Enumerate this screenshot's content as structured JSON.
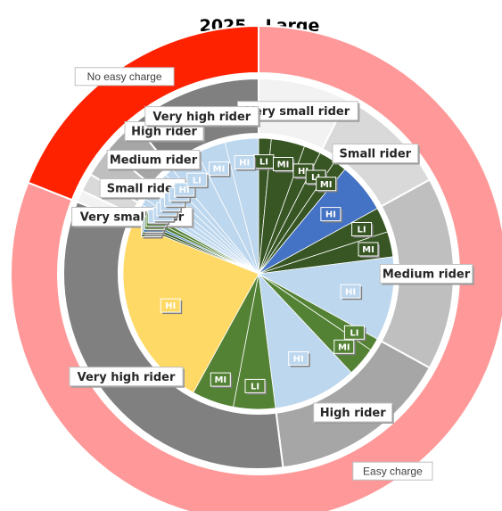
{
  "chart_data": {
    "type": "pie",
    "subtype": "multi-level donut (sunburst)",
    "title": "2025 - Large",
    "rings": [
      {
        "level": "charging",
        "segments": [
          {
            "label": "Easy charge",
            "value": 81,
            "color": "#FF9999"
          },
          {
            "label": "No easy charge",
            "value": 19,
            "color": "#FF2200"
          }
        ]
      },
      {
        "level": "rider",
        "segments": [
          {
            "label": "Very small rider",
            "value": 7.5,
            "group": "Easy charge",
            "color": "#F2F2F2"
          },
          {
            "label": "Small rider",
            "value": 9.5,
            "group": "Easy charge",
            "color": "#D9D9D9"
          },
          {
            "label": "Medium rider",
            "value": 16,
            "group": "Easy charge",
            "color": "#BFBFBF"
          },
          {
            "label": "High rider",
            "value": 15,
            "group": "Easy charge",
            "color": "#A6A6A6"
          },
          {
            "label": "Very high rider",
            "value": 33,
            "group": "Easy charge",
            "color": "#808080"
          },
          {
            "label": "Very small rider",
            "value": 1,
            "group": "No easy charge",
            "color": "#F2F2F2"
          },
          {
            "label": "Small rider",
            "value": 1.5,
            "group": "No easy charge",
            "color": "#D9D9D9"
          },
          {
            "label": "Medium rider",
            "value": 2.5,
            "group": "No easy charge",
            "color": "#BFBFBF"
          },
          {
            "label": "High rider",
            "value": 3,
            "group": "No easy charge",
            "color": "#A6A6A6"
          },
          {
            "label": "Very high rider",
            "value": 11,
            "group": "No easy charge",
            "color": "#808080"
          }
        ]
      },
      {
        "level": "usage",
        "segments": [
          {
            "label": "LI",
            "value": 1.5,
            "color": "#375623"
          },
          {
            "label": "MI",
            "value": 4,
            "color": "#375623"
          },
          {
            "label": "HI",
            "value": 2,
            "color": "#375623"
          },
          {
            "label": "LI",
            "value": 2,
            "color": "#375623"
          },
          {
            "label": "MI",
            "value": 1.5,
            "color": "#375623"
          },
          {
            "label": "HI",
            "value": 6,
            "color": "#4472C4"
          },
          {
            "label": "LI",
            "value": 3,
            "color": "#375623"
          },
          {
            "label": "MI",
            "value": 3,
            "color": "#375623"
          },
          {
            "label": "HI",
            "value": 10,
            "color": "#BDD7EE"
          },
          {
            "label": "LI",
            "value": 1.5,
            "color": "#548235"
          },
          {
            "label": "MI",
            "value": 3.5,
            "color": "#548235"
          },
          {
            "label": "HI",
            "value": 10,
            "color": "#BDD7EE"
          },
          {
            "label": "LI",
            "value": 5,
            "color": "#548235"
          },
          {
            "label": "MI",
            "value": 5,
            "color": "#548235"
          },
          {
            "label": "HI",
            "value": 23,
            "color": "#FFD966"
          },
          {
            "label": "LI",
            "value": 0.3,
            "color": "#375623"
          },
          {
            "label": "MI",
            "value": 0.4,
            "color": "#375623"
          },
          {
            "label": "HI",
            "value": 0.3,
            "color": "#2E75B6"
          },
          {
            "label": "LI",
            "value": 0.5,
            "color": "#548235"
          },
          {
            "label": "MI",
            "value": 0.5,
            "color": "#548235"
          },
          {
            "label": "HI",
            "value": 0.5,
            "color": "#BDD7EE"
          },
          {
            "label": "LI",
            "value": 0.8,
            "color": "#BDD7EE"
          },
          {
            "label": "MI",
            "value": 0.9,
            "color": "#BDD7EE"
          },
          {
            "label": "HI",
            "value": 0.8,
            "color": "#BDD7EE"
          },
          {
            "label": "LI",
            "value": 1,
            "color": "#BDD7EE"
          },
          {
            "label": "MI",
            "value": 1,
            "color": "#BDD7EE"
          },
          {
            "label": "HI",
            "value": 1,
            "color": "#BDD7EE"
          },
          {
            "label": "LI",
            "value": 3.5,
            "color": "#BDD7EE"
          },
          {
            "label": "MI",
            "value": 3.5,
            "color": "#BDD7EE"
          },
          {
            "label": "HI",
            "value": 4,
            "color": "#BDD7EE"
          }
        ]
      }
    ],
    "legend": "none"
  }
}
